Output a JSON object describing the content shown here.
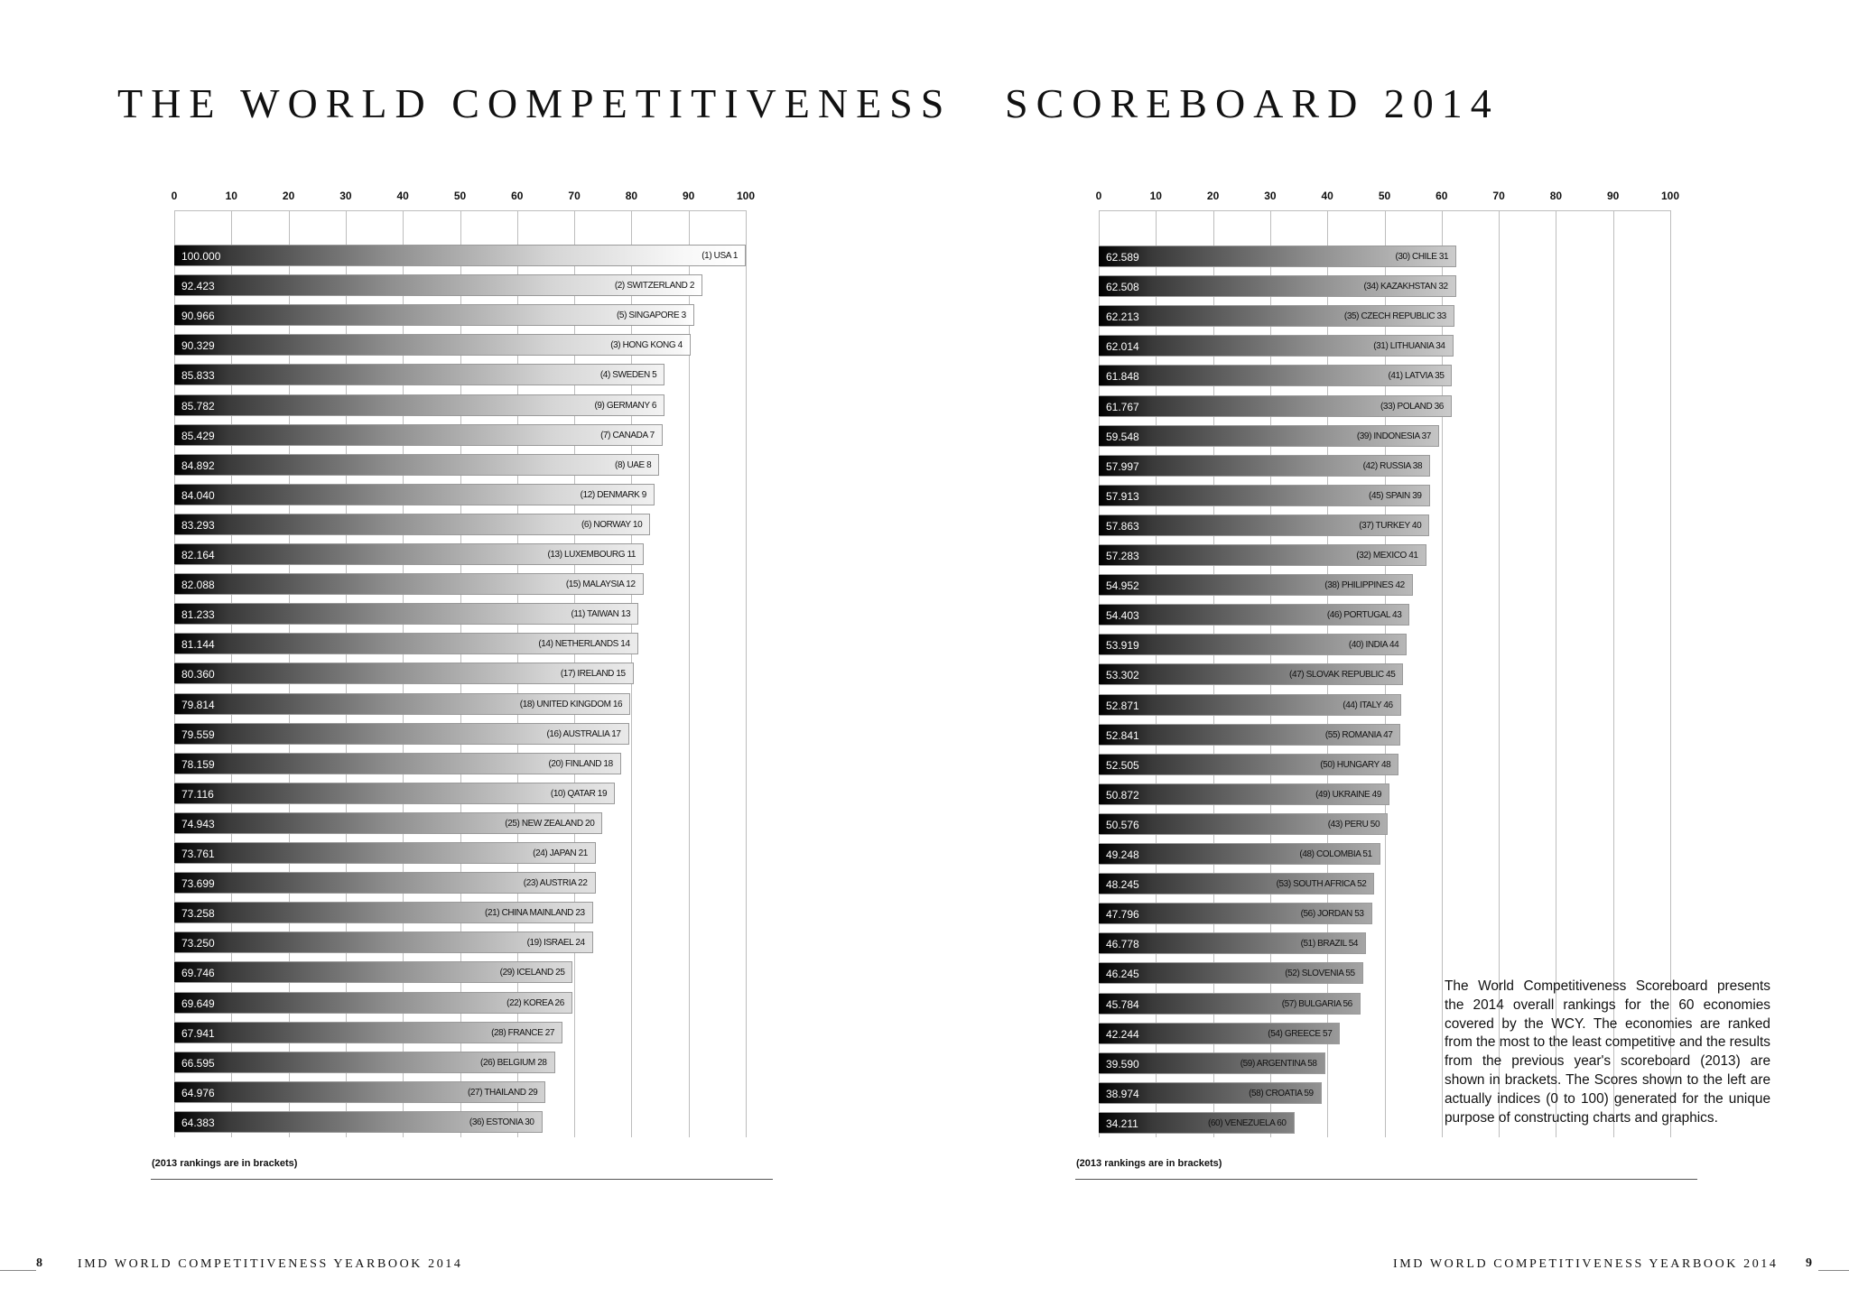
{
  "header": {
    "title_left": "THE WORLD COMPETITIVENESS",
    "title_right": "SCOREBOARD 2014"
  },
  "footnote": "(2013 rankings are in brackets)",
  "description": "The World Competitiveness Scoreboard presents the 2014 overall rankings for the 60 economies covered by the WCY. The economies are ranked from the most to the least competitive and the results from the previous year's scoreboard (2013) are shown in brackets. The Scores shown to the left are actually indices (0 to 100) generated for the unique purpose of constructing charts and graphics.",
  "footer": {
    "left_page": "8",
    "right_page": "9",
    "yearbook": "IMD WORLD COMPETITIVENESS YEARBOOK 2014"
  },
  "chart_data": [
    {
      "type": "bar",
      "orientation": "horizontal",
      "xlim": [
        0,
        100
      ],
      "ticks": [
        "0",
        "10",
        "20",
        "30",
        "40",
        "50",
        "60",
        "70",
        "80",
        "90",
        "100"
      ],
      "bars": [
        {
          "score": "100.000",
          "value": 100.0,
          "label": "(1) USA 1"
        },
        {
          "score": "92.423",
          "value": 92.423,
          "label": "(2) SWITZERLAND 2"
        },
        {
          "score": "90.966",
          "value": 90.966,
          "label": "(5) SINGAPORE 3"
        },
        {
          "score": "90.329",
          "value": 90.329,
          "label": "(3) HONG KONG 4"
        },
        {
          "score": "85.833",
          "value": 85.833,
          "label": "(4) SWEDEN 5"
        },
        {
          "score": "85.782",
          "value": 85.782,
          "label": "(9) GERMANY 6"
        },
        {
          "score": "85.429",
          "value": 85.429,
          "label": "(7) CANADA 7"
        },
        {
          "score": "84.892",
          "value": 84.892,
          "label": "(8) UAE 8"
        },
        {
          "score": "84.040",
          "value": 84.04,
          "label": "(12) DENMARK 9"
        },
        {
          "score": "83.293",
          "value": 83.293,
          "label": "(6) NORWAY 10"
        },
        {
          "score": "82.164",
          "value": 82.164,
          "label": "(13) LUXEMBOURG 11"
        },
        {
          "score": "82.088",
          "value": 82.088,
          "label": "(15) MALAYSIA 12"
        },
        {
          "score": "81.233",
          "value": 81.233,
          "label": "(11) TAIWAN 13"
        },
        {
          "score": "81.144",
          "value": 81.144,
          "label": "(14) NETHERLANDS 14"
        },
        {
          "score": "80.360",
          "value": 80.36,
          "label": "(17) IRELAND 15"
        },
        {
          "score": "79.814",
          "value": 79.814,
          "label": "(18) UNITED KINGDOM 16"
        },
        {
          "score": "79.559",
          "value": 79.559,
          "label": "(16) AUSTRALIA 17"
        },
        {
          "score": "78.159",
          "value": 78.159,
          "label": "(20) FINLAND 18"
        },
        {
          "score": "77.116",
          "value": 77.116,
          "label": "(10) QATAR 19"
        },
        {
          "score": "74.943",
          "value": 74.943,
          "label": "(25) NEW ZEALAND 20"
        },
        {
          "score": "73.761",
          "value": 73.761,
          "label": "(24) JAPAN 21"
        },
        {
          "score": "73.699",
          "value": 73.699,
          "label": "(23) AUSTRIA 22"
        },
        {
          "score": "73.258",
          "value": 73.258,
          "label": "(21) CHINA MAINLAND 23"
        },
        {
          "score": "73.250",
          "value": 73.25,
          "label": "(19) ISRAEL 24"
        },
        {
          "score": "69.746",
          "value": 69.746,
          "label": "(29) ICELAND 25"
        },
        {
          "score": "69.649",
          "value": 69.649,
          "label": "(22) KOREA 26"
        },
        {
          "score": "67.941",
          "value": 67.941,
          "label": "(28) FRANCE 27"
        },
        {
          "score": "66.595",
          "value": 66.595,
          "label": "(26) BELGIUM 28"
        },
        {
          "score": "64.976",
          "value": 64.976,
          "label": "(27) THAILAND 29"
        },
        {
          "score": "64.383",
          "value": 64.383,
          "label": "(36) ESTONIA 30"
        }
      ]
    },
    {
      "type": "bar",
      "orientation": "horizontal",
      "xlim": [
        0,
        100
      ],
      "ticks": [
        "0",
        "10",
        "20",
        "30",
        "40",
        "50",
        "60",
        "70",
        "80",
        "90",
        "100"
      ],
      "bars": [
        {
          "score": "62.589",
          "value": 62.589,
          "label": "(30) CHILE 31"
        },
        {
          "score": "62.508",
          "value": 62.508,
          "label": "(34) KAZAKHSTAN 32"
        },
        {
          "score": "62.213",
          "value": 62.213,
          "label": "(35) CZECH REPUBLIC 33"
        },
        {
          "score": "62.014",
          "value": 62.014,
          "label": "(31) LITHUANIA 34"
        },
        {
          "score": "61.848",
          "value": 61.848,
          "label": "(41) LATVIA 35"
        },
        {
          "score": "61.767",
          "value": 61.767,
          "label": "(33) POLAND 36"
        },
        {
          "score": "59.548",
          "value": 59.548,
          "label": "(39) INDONESIA 37"
        },
        {
          "score": "57.997",
          "value": 57.997,
          "label": "(42) RUSSIA 38"
        },
        {
          "score": "57.913",
          "value": 57.913,
          "label": "(45) SPAIN 39"
        },
        {
          "score": "57.863",
          "value": 57.863,
          "label": "(37) TURKEY 40"
        },
        {
          "score": "57.283",
          "value": 57.283,
          "label": "(32) MEXICO 41"
        },
        {
          "score": "54.952",
          "value": 54.952,
          "label": "(38) PHILIPPINES 42"
        },
        {
          "score": "54.403",
          "value": 54.403,
          "label": "(46) PORTUGAL 43"
        },
        {
          "score": "53.919",
          "value": 53.919,
          "label": "(40) INDIA 44"
        },
        {
          "score": "53.302",
          "value": 53.302,
          "label": "(47) SLOVAK REPUBLIC 45"
        },
        {
          "score": "52.871",
          "value": 52.871,
          "label": "(44) ITALY 46"
        },
        {
          "score": "52.841",
          "value": 52.841,
          "label": "(55) ROMANIA 47"
        },
        {
          "score": "52.505",
          "value": 52.505,
          "label": "(50) HUNGARY 48"
        },
        {
          "score": "50.872",
          "value": 50.872,
          "label": "(49) UKRAINE 49"
        },
        {
          "score": "50.576",
          "value": 50.576,
          "label": "(43) PERU 50"
        },
        {
          "score": "49.248",
          "value": 49.248,
          "label": "(48) COLOMBIA 51"
        },
        {
          "score": "48.245",
          "value": 48.245,
          "label": "(53) SOUTH AFRICA 52"
        },
        {
          "score": "47.796",
          "value": 47.796,
          "label": "(56) JORDAN 53"
        },
        {
          "score": "46.778",
          "value": 46.778,
          "label": "(51) BRAZIL 54"
        },
        {
          "score": "46.245",
          "value": 46.245,
          "label": "(52) SLOVENIA 55"
        },
        {
          "score": "45.784",
          "value": 45.784,
          "label": "(57) BULGARIA 56"
        },
        {
          "score": "42.244",
          "value": 42.244,
          "label": "(54) GREECE 57"
        },
        {
          "score": "39.590",
          "value": 39.59,
          "label": "(59) ARGENTINA 58"
        },
        {
          "score": "38.974",
          "value": 38.974,
          "label": "(58) CROATIA 59"
        },
        {
          "score": "34.211",
          "value": 34.211,
          "label": "(60) VENEZUELA 60"
        }
      ]
    }
  ]
}
